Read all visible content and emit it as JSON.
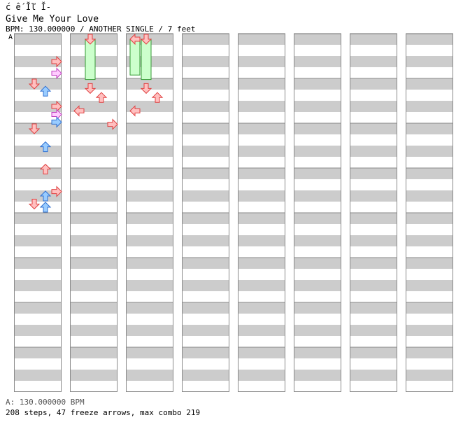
{
  "header": {
    "garbled": "ć  ế  Ĭľ Ĭ-",
    "title": "Give Me Your Love",
    "info": "BPM: 130.000000 / ANOTHER SINGLE / 7 feet",
    "marker": "A"
  },
  "footer": {
    "bpm_line": "A: 130.000000 BPM",
    "stats_line": "208 steps, 47 freeze arrows, max combo 219"
  },
  "colors": {
    "stripe": "#cccccc",
    "red_arrow": "#ffc0c0",
    "red_outline": "#e04040",
    "blue_arrow": "#99ccff",
    "blue_outline": "#3070d0",
    "pink_arrow": "#ffccff",
    "pink_outline": "#c040c0",
    "freeze_fill": "#ccffcc",
    "freeze_outline": "#339933"
  },
  "chart_data": {
    "type": "step-chart",
    "columns": 8,
    "measures_per_column": 8,
    "notes": [
      {
        "col": 0,
        "t": 0.5,
        "lane": "right",
        "c": "red"
      },
      {
        "col": 0,
        "t": 0.76,
        "lane": "right",
        "c": "pink"
      },
      {
        "col": 0,
        "t": 1.0,
        "lane": "down",
        "c": "red"
      },
      {
        "col": 0,
        "t": 1.16,
        "lane": "up",
        "c": "blue"
      },
      {
        "col": 0,
        "t": 1.5,
        "lane": "right",
        "c": "red"
      },
      {
        "col": 0,
        "t": 1.68,
        "lane": "right",
        "c": "pink"
      },
      {
        "col": 0,
        "t": 1.85,
        "lane": "right",
        "c": "blue"
      },
      {
        "col": 0,
        "t": 2.0,
        "lane": "down",
        "c": "red"
      },
      {
        "col": 0,
        "t": 2.4,
        "lane": "up",
        "c": "blue"
      },
      {
        "col": 0,
        "t": 2.9,
        "lane": "up",
        "c": "red"
      },
      {
        "col": 0,
        "t": 3.4,
        "lane": "right",
        "c": "red"
      },
      {
        "col": 0,
        "t": 3.5,
        "lane": "up",
        "c": "blue"
      },
      {
        "col": 0,
        "t": 3.68,
        "lane": "down",
        "c": "red"
      },
      {
        "col": 0,
        "t": 3.75,
        "lane": "up",
        "c": "blue"
      },
      {
        "col": 1,
        "t": 0.0,
        "lane": "down",
        "c": "red",
        "len": 0.9
      },
      {
        "col": 1,
        "t": 1.1,
        "lane": "down",
        "c": "red"
      },
      {
        "col": 1,
        "t": 1.3,
        "lane": "up",
        "c": "red"
      },
      {
        "col": 1,
        "t": 1.6,
        "lane": "left",
        "c": "red"
      },
      {
        "col": 1,
        "t": 1.9,
        "lane": "right",
        "c": "red"
      },
      {
        "col": 2,
        "t": 0.0,
        "lane": "left",
        "c": "red",
        "len": 0.8
      },
      {
        "col": 2,
        "t": 0.0,
        "lane": "down",
        "c": "red",
        "len": 0.9
      },
      {
        "col": 2,
        "t": 1.1,
        "lane": "down",
        "c": "red"
      },
      {
        "col": 2,
        "t": 1.3,
        "lane": "up",
        "c": "red"
      },
      {
        "col": 2,
        "t": 1.6,
        "lane": "left",
        "c": "red"
      }
    ]
  }
}
